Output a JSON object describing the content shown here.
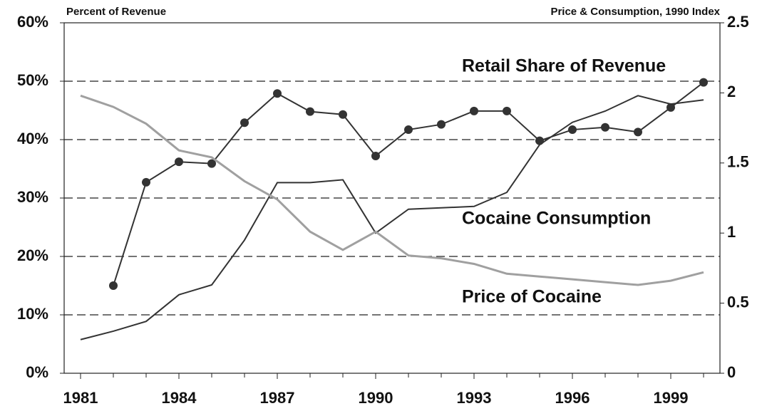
{
  "chart_data": {
    "type": "line",
    "ylabel": "Percent of Revenue",
    "y2label": "Price & Consumption, 1990 Index",
    "x": [
      1981,
      1982,
      1983,
      1984,
      1985,
      1986,
      1987,
      1988,
      1989,
      1990,
      1991,
      1992,
      1993,
      1994,
      1995,
      1996,
      1997,
      1998,
      1999,
      2000
    ],
    "xlim": [
      1980.5,
      2000.5
    ],
    "xticks": [
      1981,
      1984,
      1987,
      1990,
      1993,
      1996,
      1999
    ],
    "ylim": [
      0,
      60
    ],
    "yticks": [
      {
        "value": 0,
        "label": "0%"
      },
      {
        "value": 10,
        "label": "10%"
      },
      {
        "value": 20,
        "label": "20%"
      },
      {
        "value": 30,
        "label": "30%"
      },
      {
        "value": 40,
        "label": "40%"
      },
      {
        "value": 50,
        "label": "50%"
      },
      {
        "value": 60,
        "label": "60%"
      }
    ],
    "y2lim": [
      0,
      2.5
    ],
    "y2ticks": [
      0,
      0.5,
      1,
      1.5,
      2,
      2.5
    ],
    "grid": true,
    "series": [
      {
        "name": "Retail Share of Revenue",
        "color": "#333333",
        "markers": true,
        "values": [
          null,
          15,
          32.7,
          36.2,
          35.9,
          42.9,
          47.9,
          44.8,
          44.3,
          37.2,
          41.7,
          42.6,
          44.9,
          44.9,
          39.8,
          41.7,
          42.1,
          41.3,
          45.5,
          49.8
        ]
      },
      {
        "name": "Cocaine Consumption",
        "color": "#333333",
        "axis": "y2",
        "values": [
          0.24,
          0.3,
          0.37,
          0.56,
          0.63,
          0.95,
          1.36,
          1.36,
          1.38,
          1.0,
          1.17,
          1.18,
          1.19,
          1.29,
          1.63,
          1.79,
          1.87,
          1.98,
          1.92,
          1.95
        ]
      },
      {
        "name": "Price of Cocaine",
        "color": "#a0a0a0",
        "axis": "y2",
        "values": [
          1.98,
          1.9,
          1.78,
          1.59,
          1.54,
          1.37,
          1.24,
          1.01,
          0.88,
          1.01,
          0.84,
          0.82,
          0.78,
          0.71,
          0.69,
          0.67,
          0.65,
          0.63,
          0.66,
          0.72
        ]
      }
    ]
  }
}
